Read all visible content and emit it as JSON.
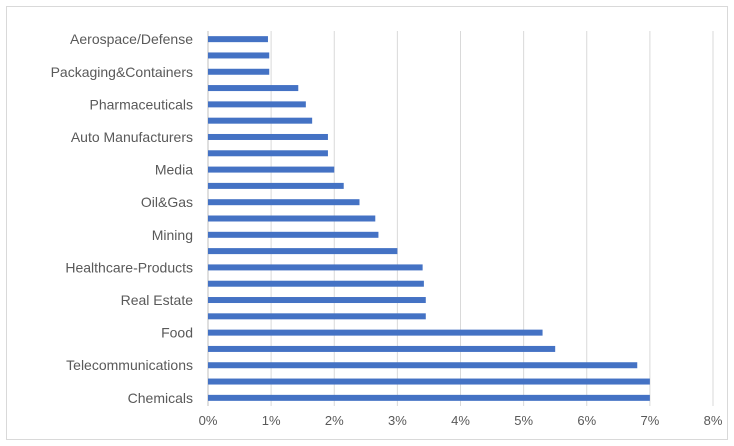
{
  "chart_data": {
    "type": "bar",
    "orientation": "horizontal",
    "categories": [
      "Chemicals",
      "",
      "Telecommunications",
      "",
      "Food",
      "",
      "Real Estate",
      "",
      "Healthcare-Products",
      "",
      "Mining",
      "",
      "Oil&Gas",
      "",
      "Media",
      "",
      "Auto Manufacturers",
      "",
      "Pharmaceuticals",
      "",
      "Packaging&Containers",
      "",
      "Aerospace/Defense"
    ],
    "values": [
      0.07,
      0.07,
      0.068,
      0.055,
      0.053,
      0.0345,
      0.0345,
      0.0342,
      0.034,
      0.03,
      0.027,
      0.0265,
      0.024,
      0.0215,
      0.02,
      0.019,
      0.019,
      0.0165,
      0.0155,
      0.0143,
      0.0097,
      0.0097,
      0.0095
    ],
    "xlim": [
      0,
      0.08
    ],
    "x_ticks": [
      "0%",
      "1%",
      "2%",
      "3%",
      "4%",
      "5%",
      "6%",
      "7%",
      "8%"
    ],
    "x_tick_values": [
      0,
      0.01,
      0.02,
      0.03,
      0.04,
      0.05,
      0.06,
      0.07,
      0.08
    ],
    "bar_color": "#4472c4",
    "grid": "vertical",
    "legend": "none"
  }
}
